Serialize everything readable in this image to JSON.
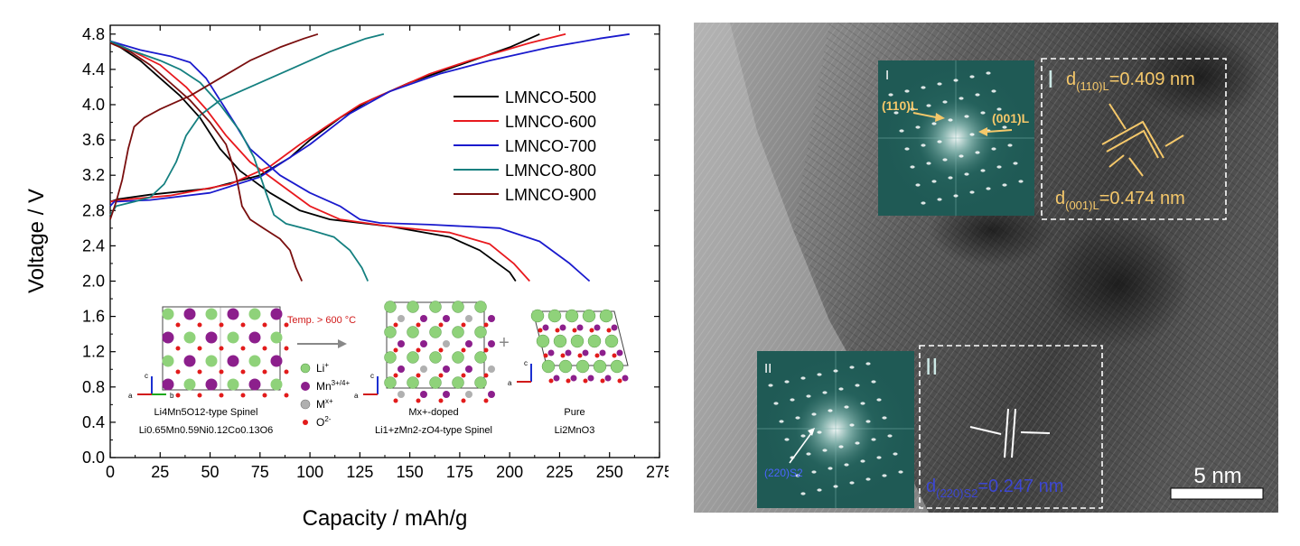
{
  "chart_data": {
    "type": "line",
    "xlabel": "Capacity / mAh/g",
    "ylabel": "Voltage / V",
    "xlim": [
      0,
      275
    ],
    "ylim": [
      0.0,
      4.9
    ],
    "xticks": [
      "0",
      "25",
      "50",
      "75",
      "100",
      "125",
      "150",
      "175",
      "200",
      "225",
      "250",
      "275"
    ],
    "yticks": [
      "0.0",
      "0.4",
      "0.8",
      "1.2",
      "1.6",
      "2.0",
      "2.4",
      "2.8",
      "3.2",
      "3.6",
      "4.0",
      "4.4",
      "4.8"
    ],
    "legend_position": "top-right",
    "series": [
      {
        "name": "LMNCO-500",
        "color": "#000000",
        "charge": [
          [
            0,
            2.9
          ],
          [
            4,
            2.93
          ],
          [
            20,
            2.98
          ],
          [
            50,
            3.05
          ],
          [
            75,
            3.2
          ],
          [
            90,
            3.4
          ],
          [
            100,
            3.6
          ],
          [
            115,
            3.85
          ],
          [
            130,
            4.05
          ],
          [
            150,
            4.25
          ],
          [
            175,
            4.45
          ],
          [
            200,
            4.65
          ],
          [
            215,
            4.8
          ]
        ],
        "discharge": [
          [
            0,
            4.72
          ],
          [
            5,
            4.65
          ],
          [
            15,
            4.5
          ],
          [
            25,
            4.3
          ],
          [
            35,
            4.1
          ],
          [
            45,
            3.85
          ],
          [
            55,
            3.5
          ],
          [
            65,
            3.25
          ],
          [
            80,
            3.0
          ],
          [
            95,
            2.8
          ],
          [
            110,
            2.7
          ],
          [
            140,
            2.62
          ],
          [
            170,
            2.5
          ],
          [
            185,
            2.35
          ],
          [
            200,
            2.1
          ],
          [
            203,
            2.0
          ]
        ]
      },
      {
        "name": "LMNCO-600",
        "color": "#e8191e",
        "charge": [
          [
            0,
            2.9
          ],
          [
            5,
            2.92
          ],
          [
            30,
            2.97
          ],
          [
            60,
            3.1
          ],
          [
            80,
            3.3
          ],
          [
            95,
            3.55
          ],
          [
            110,
            3.78
          ],
          [
            125,
            4.0
          ],
          [
            140,
            4.15
          ],
          [
            160,
            4.35
          ],
          [
            180,
            4.5
          ],
          [
            210,
            4.7
          ],
          [
            228,
            4.8
          ]
        ],
        "discharge": [
          [
            0,
            4.72
          ],
          [
            10,
            4.62
          ],
          [
            25,
            4.45
          ],
          [
            38,
            4.2
          ],
          [
            48,
            3.95
          ],
          [
            58,
            3.65
          ],
          [
            70,
            3.35
          ],
          [
            85,
            3.1
          ],
          [
            100,
            2.85
          ],
          [
            115,
            2.7
          ],
          [
            140,
            2.62
          ],
          [
            170,
            2.55
          ],
          [
            190,
            2.42
          ],
          [
            202,
            2.2
          ],
          [
            210,
            2.0
          ]
        ]
      },
      {
        "name": "LMNCO-700",
        "color": "#1a1acd",
        "charge": [
          [
            0,
            2.85
          ],
          [
            2,
            2.9
          ],
          [
            20,
            2.92
          ],
          [
            50,
            3.0
          ],
          [
            75,
            3.18
          ],
          [
            100,
            3.55
          ],
          [
            120,
            3.9
          ],
          [
            140,
            4.15
          ],
          [
            165,
            4.35
          ],
          [
            190,
            4.5
          ],
          [
            220,
            4.65
          ],
          [
            245,
            4.75
          ],
          [
            260,
            4.8
          ]
        ],
        "discharge": [
          [
            0,
            4.72
          ],
          [
            15,
            4.62
          ],
          [
            30,
            4.55
          ],
          [
            40,
            4.48
          ],
          [
            48,
            4.3
          ],
          [
            55,
            4.05
          ],
          [
            62,
            3.8
          ],
          [
            70,
            3.5
          ],
          [
            85,
            3.2
          ],
          [
            100,
            3.0
          ],
          [
            115,
            2.85
          ],
          [
            125,
            2.7
          ],
          [
            135,
            2.66
          ],
          [
            160,
            2.64
          ],
          [
            195,
            2.6
          ],
          [
            215,
            2.45
          ],
          [
            230,
            2.2
          ],
          [
            240,
            2.0
          ]
        ]
      },
      {
        "name": "LMNCO-800",
        "color": "#158080",
        "charge": [
          [
            0,
            2.75
          ],
          [
            3,
            2.85
          ],
          [
            12,
            2.9
          ],
          [
            20,
            2.95
          ],
          [
            27,
            3.1
          ],
          [
            33,
            3.35
          ],
          [
            38,
            3.65
          ],
          [
            45,
            3.88
          ],
          [
            55,
            4.05
          ],
          [
            70,
            4.2
          ],
          [
            90,
            4.4
          ],
          [
            110,
            4.6
          ],
          [
            128,
            4.75
          ],
          [
            137,
            4.8
          ]
        ],
        "discharge": [
          [
            0,
            4.72
          ],
          [
            10,
            4.62
          ],
          [
            25,
            4.5
          ],
          [
            35,
            4.4
          ],
          [
            45,
            4.25
          ],
          [
            55,
            4.0
          ],
          [
            65,
            3.7
          ],
          [
            72,
            3.4
          ],
          [
            78,
            3.0
          ],
          [
            82,
            2.75
          ],
          [
            88,
            2.65
          ],
          [
            100,
            2.58
          ],
          [
            112,
            2.5
          ],
          [
            120,
            2.35
          ],
          [
            126,
            2.15
          ],
          [
            129,
            2.0
          ]
        ]
      },
      {
        "name": "LMNCO-900",
        "color": "#7a0f0f",
        "charge": [
          [
            0,
            2.7
          ],
          [
            3,
            2.9
          ],
          [
            6,
            3.15
          ],
          [
            9,
            3.5
          ],
          [
            12,
            3.75
          ],
          [
            17,
            3.85
          ],
          [
            25,
            3.95
          ],
          [
            40,
            4.1
          ],
          [
            55,
            4.3
          ],
          [
            70,
            4.5
          ],
          [
            85,
            4.65
          ],
          [
            97,
            4.75
          ],
          [
            104,
            4.8
          ]
        ],
        "discharge": [
          [
            0,
            4.7
          ],
          [
            10,
            4.6
          ],
          [
            20,
            4.45
          ],
          [
            30,
            4.25
          ],
          [
            40,
            4.05
          ],
          [
            50,
            3.8
          ],
          [
            58,
            3.55
          ],
          [
            63,
            3.2
          ],
          [
            66,
            2.85
          ],
          [
            70,
            2.7
          ],
          [
            78,
            2.58
          ],
          [
            85,
            2.48
          ],
          [
            90,
            2.35
          ],
          [
            93,
            2.15
          ],
          [
            96,
            2.0
          ]
        ]
      }
    ]
  },
  "inset_structures": {
    "arrow_label": "Temp. > 600 °C",
    "legend": [
      "Li",
      "Mn",
      "M",
      "O"
    ],
    "legend_sup": [
      "+",
      "3+/4+",
      "x+",
      "2-"
    ],
    "spinel_a": {
      "line1": "Li4Mn5O12-type Spinel",
      "line2": "Li0.65Mn0.59Ni0.12Co0.13O6"
    },
    "spinel_b": {
      "line1": "Mx+-doped",
      "line2": "Li1+zMn2-zO4-type Spinel"
    },
    "pure": {
      "line1": "Pure",
      "line2": "Li2MnO3"
    },
    "plus": "+",
    "axes_a": [
      "c",
      "a",
      "b"
    ],
    "axes_b": [
      "c",
      "a"
    ],
    "colors": {
      "li": "#8fd27a",
      "mn": "#8c1f8c",
      "m": "#b0b0b0",
      "o": "#e21b1b"
    }
  },
  "tem_image": {
    "fft_I_label": "I",
    "fft_I_spot_a": "(110)L",
    "fft_I_spot_b": "(001)L",
    "region_I_label": "I",
    "d_110_prefix": "d",
    "d_110_sub": "(110)L",
    "d_110_value": "=0.409 nm",
    "d_001_prefix": "d",
    "d_001_sub": "(001)L",
    "d_001_value": "=0.474 nm",
    "fft_II_label": "II",
    "fft_II_spot": "(220)S2",
    "region_II_label": "II",
    "d_220_prefix": "d",
    "d_220_sub": "(220)S2",
    "d_220_value": "=0.247 nm",
    "scale_bar": "5 nm",
    "colors": {
      "label_orange": "#f5c86a",
      "label_blue": "#3c46d2",
      "fft_bg": "#1f5a55"
    }
  }
}
